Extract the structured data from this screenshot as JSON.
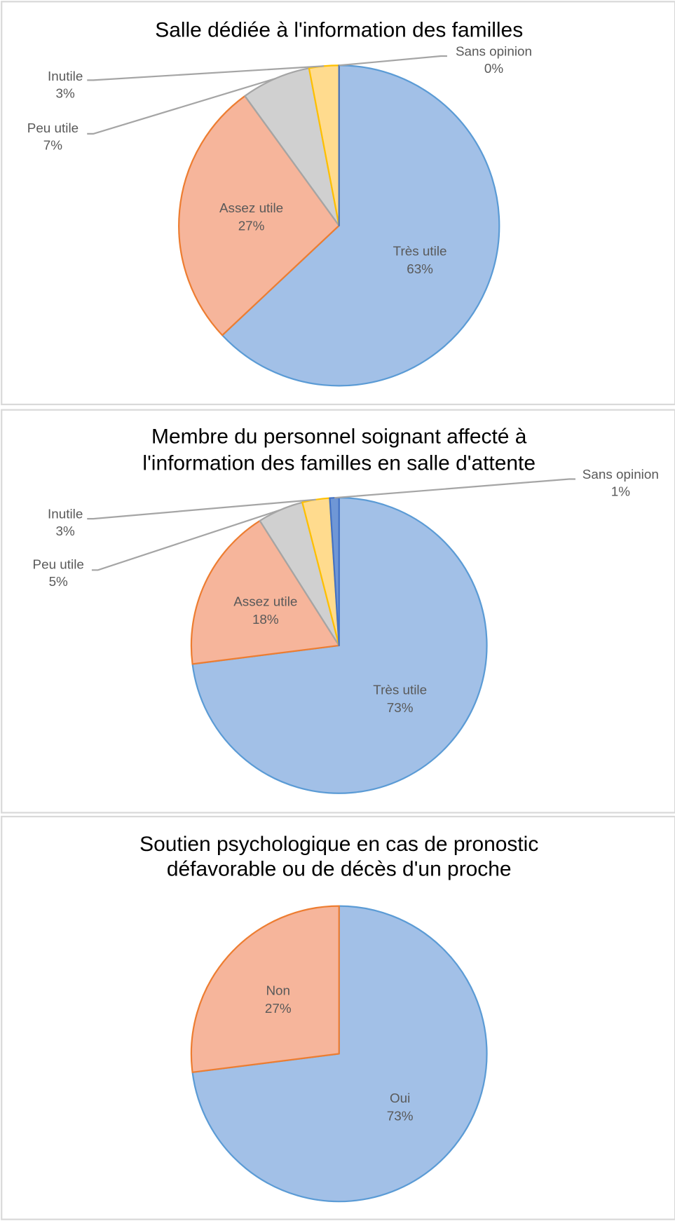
{
  "chart_data": [
    {
      "type": "pie",
      "title": [
        "Salle dédiée à l'information des familles"
      ],
      "categories": [
        "Très utile",
        "Assez utile",
        "Peu utile",
        "Inutile",
        "Sans opinion"
      ],
      "values": [
        63,
        27,
        7,
        3,
        0
      ],
      "value_labels": [
        "63%",
        "27%",
        "7%",
        "3%",
        "0%"
      ],
      "colors": [
        "#a2c0e7",
        "#f6b59b",
        "#d0d0d0",
        "#ffdb8e",
        "#6f97d6"
      ],
      "edge_colors": [
        "#5b9bd5",
        "#ed7d31",
        "#a5a5a5",
        "#ffc000",
        "#4472c4"
      ]
    },
    {
      "type": "pie",
      "title": [
        "Membre du personnel soignant affecté à",
        "l'information des familles en salle d'attente"
      ],
      "categories": [
        "Très utile",
        "Assez utile",
        "Peu utile",
        "Inutile",
        "Sans opinion"
      ],
      "values": [
        73,
        18,
        5,
        3,
        1
      ],
      "value_labels": [
        "73%",
        "18%",
        "5%",
        "3%",
        "1%"
      ],
      "colors": [
        "#a2c0e7",
        "#f6b59b",
        "#d0d0d0",
        "#ffdb8e",
        "#6f97d6"
      ],
      "edge_colors": [
        "#5b9bd5",
        "#ed7d31",
        "#a5a5a5",
        "#ffc000",
        "#4472c4"
      ]
    },
    {
      "type": "pie",
      "title": [
        "Soutien psychologique en cas de pronostic",
        "défavorable ou de décès d'un proche"
      ],
      "categories": [
        "Oui",
        "Non"
      ],
      "values": [
        73,
        27
      ],
      "value_labels": [
        "73%",
        "27%"
      ],
      "colors": [
        "#a2c0e7",
        "#f6b59b"
      ],
      "edge_colors": [
        "#5b9bd5",
        "#ed7d31"
      ]
    }
  ]
}
